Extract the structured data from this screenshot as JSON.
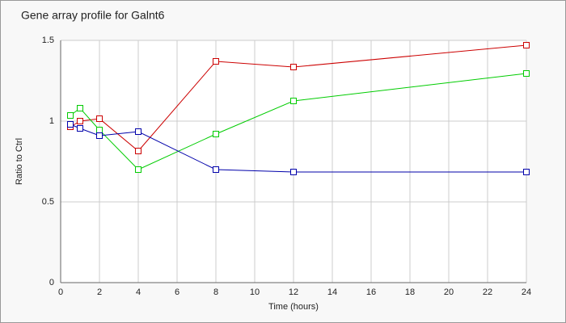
{
  "chart_data": {
    "type": "line",
    "title": "Gene array profile for Galnt6",
    "x_label": "Time (hours)",
    "y_label": "Ratio to Ctrl",
    "x": [
      0.5,
      1,
      2,
      4,
      8,
      12,
      24
    ],
    "series": [
      {
        "color": "#cc0000",
        "values": [
          0.965,
          1.0,
          1.015,
          0.815,
          1.37,
          1.335,
          1.47
        ]
      },
      {
        "color": "#00cc00",
        "values": [
          1.035,
          1.08,
          0.945,
          0.7,
          0.92,
          1.125,
          1.295
        ]
      },
      {
        "color": "#0000aa",
        "values": [
          0.98,
          0.955,
          0.91,
          0.935,
          0.7,
          0.685,
          0.685
        ]
      }
    ],
    "xlim": [
      0,
      24
    ],
    "xticks": [
      0,
      2,
      4,
      6,
      8,
      10,
      12,
      14,
      16,
      18,
      20,
      22,
      24
    ],
    "ylim": [
      0,
      1.5
    ],
    "yticks": [
      0,
      0.5,
      1,
      1.5
    ],
    "grid": true
  }
}
